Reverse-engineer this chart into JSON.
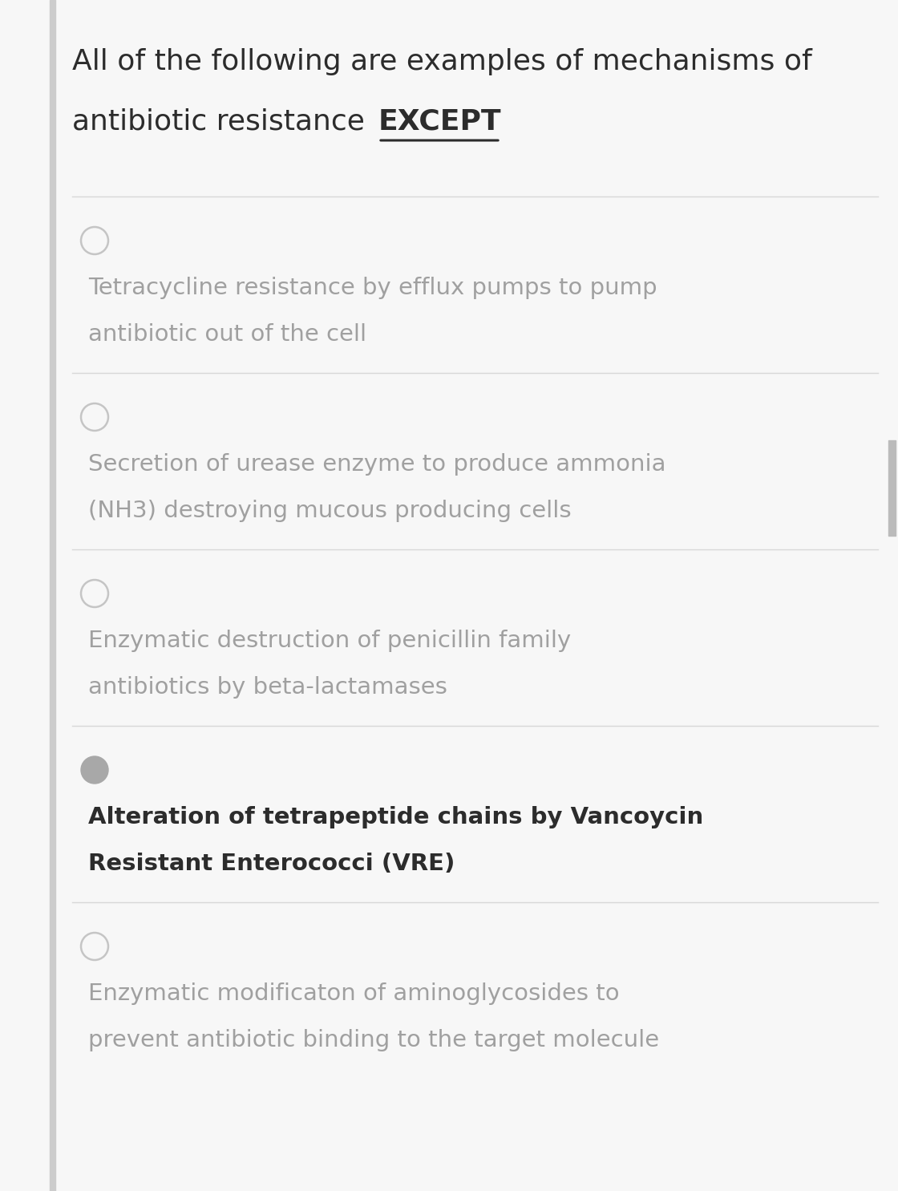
{
  "bg_color": "#f7f7f7",
  "left_bar_color": "#cccccc",
  "right_bar_color": "#bbbbbb",
  "divider_color": "#d8d8d8",
  "title_line1": "All of the following are examples of mechanisms of",
  "title_line2_normal": "antibiotic resistance ",
  "title_line2_bold_underline": "EXCEPT",
  "title_color": "#2c2c2c",
  "title_fontsize": 26,
  "options": [
    {
      "text_line1": "Tetracycline resistance by efflux pumps to pump",
      "text_line2": "antibiotic out of the cell",
      "selected": false,
      "text_color": "#a0a0a0",
      "fontsize": 21
    },
    {
      "text_line1": "Secretion of urease enzyme to produce ammonia",
      "text_line2": "(NH3) destroying mucous producing cells",
      "selected": false,
      "text_color": "#a0a0a0",
      "fontsize": 21
    },
    {
      "text_line1": "Enzymatic destruction of penicillin family",
      "text_line2": "antibiotics by beta-lactamases",
      "selected": false,
      "text_color": "#a0a0a0",
      "fontsize": 21
    },
    {
      "text_line1": "Alteration of tetrapeptide chains by Vancoycin",
      "text_line2": "Resistant Enterococci (VRE)",
      "selected": true,
      "text_color": "#2c2c2c",
      "fontsize": 21
    },
    {
      "text_line1": "Enzymatic modificaton of aminoglycosides to",
      "text_line2": "prevent antibiotic binding to the target molecule",
      "selected": false,
      "text_color": "#a0a0a0",
      "fontsize": 21
    }
  ]
}
